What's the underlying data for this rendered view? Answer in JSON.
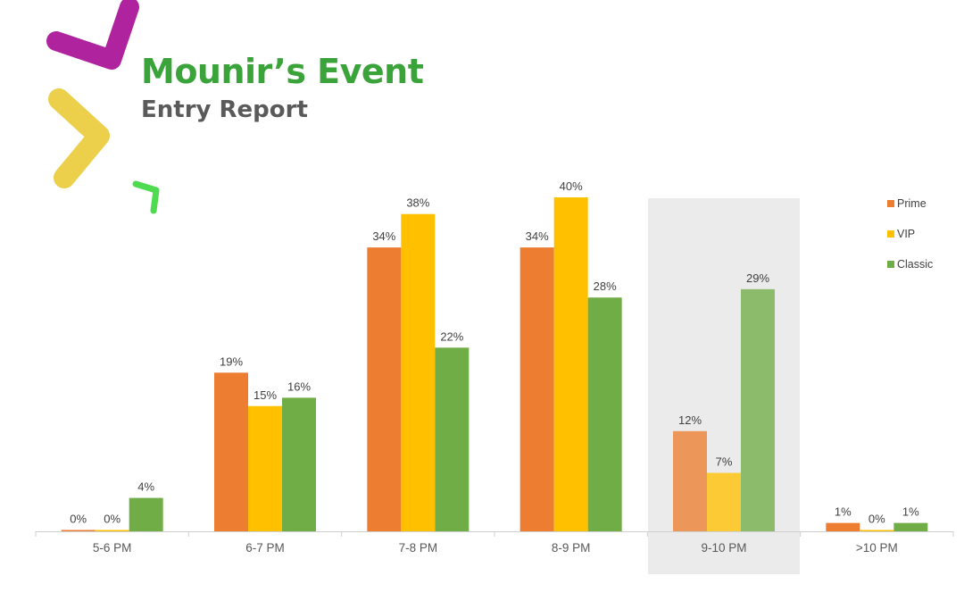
{
  "title": "Mounir’s Event",
  "subtitle": "Entry Report",
  "colors": {
    "prime": "#ed7d31",
    "vip": "#ffc000",
    "classic": "#70ad47",
    "title": "#3aa33a",
    "subtitle": "#5a5a5a",
    "highlight_band": "#ebebeb",
    "deco_magenta": "#b0239f",
    "deco_yellow": "#ecd04c",
    "deco_green": "#4fdb4f"
  },
  "decorations": [
    "magenta-chevron",
    "yellow-chevron",
    "green-chevron"
  ],
  "chart_data": {
    "type": "bar",
    "title": "",
    "xlabel": "",
    "ylabel": "",
    "ylim": [
      0,
      40
    ],
    "grid": false,
    "legend_position": "right",
    "value_suffix": "%",
    "categories": [
      "5-6 PM",
      "6-7 PM",
      "7-8 PM",
      "8-9 PM",
      "9-10 PM",
      ">10 PM"
    ],
    "highlighted_category": "9-10 PM",
    "series": [
      {
        "name": "Prime",
        "color": "#ed7d31",
        "values": [
          0,
          19,
          34,
          34,
          12,
          1
        ]
      },
      {
        "name": "VIP",
        "color": "#ffc000",
        "values": [
          0,
          15,
          38,
          40,
          7,
          0
        ]
      },
      {
        "name": "Classic",
        "color": "#70ad47",
        "values": [
          4,
          16,
          22,
          28,
          29,
          1
        ]
      }
    ]
  }
}
